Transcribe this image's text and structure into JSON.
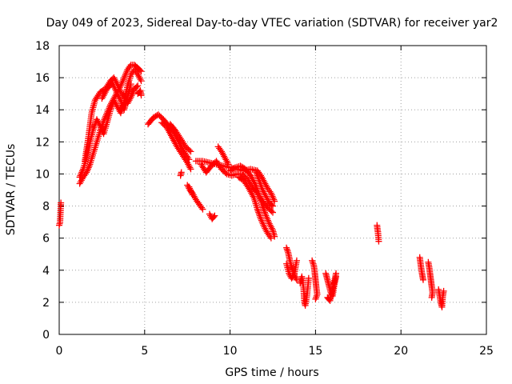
{
  "chart_data": {
    "type": "scatter",
    "title": "Day 049 of 2023, Sidereal Day-to-day VTEC variation (SDTVAR) for receiver yar2",
    "xlabel": "GPS time / hours",
    "ylabel": "SDTVAR / TECUs",
    "xlim": [
      0,
      25
    ],
    "ylim": [
      0,
      18
    ],
    "xticks": [
      0,
      5,
      10,
      15,
      20,
      25
    ],
    "yticks": [
      0,
      2,
      4,
      6,
      8,
      10,
      12,
      14,
      16,
      18
    ],
    "grid": true,
    "marker": "plus",
    "colors": {
      "series": "#ff0000",
      "grid": "#a0a0a0",
      "axis": "#000000"
    },
    "series": [
      {
        "name": "SDTVAR",
        "segments": [
          [
            [
              0.0,
              6.8
            ],
            [
              0.05,
              7.0
            ],
            [
              0.1,
              8.2
            ]
          ],
          [
            [
              1.2,
              9.4
            ],
            [
              1.4,
              9.8
            ],
            [
              1.6,
              10.1
            ],
            [
              1.8,
              10.6
            ],
            [
              2.0,
              11.3
            ],
            [
              2.2,
              12.0
            ],
            [
              2.4,
              12.7
            ],
            [
              2.6,
              13.3
            ],
            [
              2.8,
              13.8
            ],
            [
              3.0,
              14.3
            ],
            [
              3.2,
              14.7
            ],
            [
              3.4,
              15.1
            ],
            [
              3.6,
              15.5
            ],
            [
              3.8,
              16.0
            ],
            [
              4.0,
              16.5
            ],
            [
              4.2,
              16.8
            ],
            [
              4.4,
              16.8
            ],
            [
              4.6,
              16.6
            ],
            [
              4.8,
              16.4
            ]
          ],
          [
            [
              1.2,
              9.8
            ],
            [
              1.4,
              10.3
            ],
            [
              1.6,
              11.0
            ],
            [
              1.8,
              12.0
            ],
            [
              2.0,
              12.8
            ],
            [
              2.2,
              13.4
            ],
            [
              2.4,
              13.0
            ],
            [
              2.6,
              12.5
            ],
            [
              2.8,
              13.2
            ],
            [
              3.0,
              14.0
            ],
            [
              3.2,
              14.6
            ],
            [
              3.4,
              14.2
            ],
            [
              3.6,
              13.8
            ],
            [
              3.8,
              14.5
            ],
            [
              4.0,
              15.5
            ],
            [
              4.2,
              16.2
            ],
            [
              4.4,
              16.5
            ],
            [
              4.6,
              16.2
            ],
            [
              4.8,
              15.8
            ]
          ],
          [
            [
              1.5,
              10.8
            ],
            [
              1.7,
              12.2
            ],
            [
              1.9,
              13.8
            ],
            [
              2.1,
              14.6
            ],
            [
              2.4,
              15.1
            ],
            [
              2.7,
              15.3
            ],
            [
              3.0,
              15.8
            ],
            [
              3.2,
              16.0
            ],
            [
              3.4,
              15.6
            ],
            [
              3.6,
              15.1
            ],
            [
              3.8,
              14.8
            ],
            [
              4.0,
              14.4
            ],
            [
              4.2,
              14.8
            ],
            [
              4.4,
              15.3
            ],
            [
              4.6,
              15.5
            ]
          ],
          [
            [
              2.5,
              14.7
            ],
            [
              2.8,
              15.3
            ],
            [
              3.1,
              15.7
            ],
            [
              3.4,
              15.0
            ],
            [
              3.6,
              14.6
            ],
            [
              3.8,
              14.0
            ],
            [
              4.0,
              14.8
            ],
            [
              4.2,
              15.6
            ]
          ],
          [
            [
              4.6,
              15.0
            ],
            [
              4.75,
              15.2
            ],
            [
              4.8,
              14.9
            ]
          ],
          [
            [
              5.2,
              13.1
            ],
            [
              5.5,
              13.5
            ],
            [
              5.8,
              13.7
            ],
            [
              6.1,
              13.4
            ],
            [
              6.4,
              13.0
            ],
            [
              6.7,
              12.6
            ],
            [
              7.0,
              12.0
            ],
            [
              7.3,
              11.4
            ],
            [
              7.6,
              10.9
            ]
          ],
          [
            [
              6.0,
              13.2
            ],
            [
              6.3,
              12.9
            ],
            [
              6.6,
              12.3
            ],
            [
              6.9,
              11.7
            ],
            [
              7.2,
              11.2
            ],
            [
              7.5,
              10.7
            ],
            [
              7.7,
              10.3
            ]
          ],
          [
            [
              6.5,
              13.1
            ],
            [
              6.8,
              12.7
            ],
            [
              7.1,
              12.2
            ],
            [
              7.4,
              11.7
            ],
            [
              7.7,
              11.4
            ]
          ],
          [
            [
              7.1,
              9.9
            ],
            [
              7.15,
              10.1
            ]
          ],
          [
            [
              7.5,
              9.3
            ],
            [
              7.65,
              9.0
            ],
            [
              7.8,
              8.8
            ],
            [
              8.0,
              8.4
            ],
            [
              8.2,
              8.1
            ],
            [
              8.4,
              7.8
            ]
          ],
          [
            [
              7.6,
              9.2
            ],
            [
              7.8,
              8.7
            ]
          ],
          [
            [
              8.8,
              7.5
            ],
            [
              8.95,
              7.2
            ],
            [
              9.1,
              7.4
            ]
          ],
          [
            [
              8.0,
              10.8
            ],
            [
              8.4,
              10.8
            ],
            [
              8.8,
              10.7
            ],
            [
              9.2,
              10.6
            ],
            [
              9.6,
              10.5
            ],
            [
              10.0,
              10.4
            ],
            [
              10.4,
              10.3
            ],
            [
              10.8,
              10.2
            ],
            [
              11.2,
              10.3
            ],
            [
              11.6,
              10.2
            ],
            [
              11.8,
              9.9
            ],
            [
              12.0,
              9.5
            ],
            [
              12.2,
              9.1
            ],
            [
              12.4,
              8.8
            ],
            [
              12.6,
              8.3
            ]
          ],
          [
            [
              8.3,
              10.6
            ],
            [
              8.6,
              10.1
            ],
            [
              8.9,
              10.5
            ],
            [
              9.2,
              10.8
            ],
            [
              9.5,
              10.3
            ],
            [
              9.8,
              10.0
            ],
            [
              10.1,
              9.9
            ],
            [
              10.4,
              10.0
            ],
            [
              10.7,
              10.0
            ],
            [
              11.0,
              9.7
            ],
            [
              11.3,
              9.2
            ],
            [
              11.6,
              8.8
            ],
            [
              11.9,
              8.3
            ],
            [
              12.2,
              7.9
            ],
            [
              12.5,
              7.6
            ]
          ],
          [
            [
              9.3,
              11.7
            ],
            [
              9.5,
              11.4
            ],
            [
              9.7,
              11.0
            ],
            [
              9.9,
              10.6
            ]
          ],
          [
            [
              10.0,
              10.2
            ],
            [
              10.3,
              10.4
            ],
            [
              10.6,
              10.5
            ],
            [
              10.9,
              10.3
            ],
            [
              11.2,
              9.9
            ],
            [
              11.5,
              9.3
            ],
            [
              11.7,
              8.7
            ],
            [
              11.9,
              8.0
            ],
            [
              12.1,
              7.4
            ],
            [
              12.3,
              6.9
            ],
            [
              12.5,
              6.5
            ],
            [
              12.6,
              6.1
            ]
          ],
          [
            [
              10.5,
              9.8
            ],
            [
              10.8,
              9.6
            ],
            [
              11.1,
              9.1
            ],
            [
              11.4,
              8.5
            ],
            [
              11.6,
              7.8
            ],
            [
              11.8,
              7.2
            ],
            [
              12.0,
              6.7
            ],
            [
              12.2,
              6.3
            ],
            [
              12.4,
              6.0
            ]
          ],
          [
            [
              11.5,
              10.2
            ],
            [
              11.7,
              9.6
            ],
            [
              11.9,
              9.0
            ],
            [
              12.1,
              8.6
            ],
            [
              12.3,
              8.2
            ],
            [
              12.5,
              8.0
            ]
          ],
          [
            [
              13.3,
              5.4
            ],
            [
              13.4,
              5.1
            ],
            [
              13.5,
              4.6
            ],
            [
              13.6,
              4.2
            ],
            [
              13.7,
              3.9
            ],
            [
              13.8,
              3.6
            ],
            [
              13.9,
              3.4
            ]
          ],
          [
            [
              13.3,
              4.4
            ],
            [
              13.45,
              3.8
            ],
            [
              13.6,
              3.5
            ],
            [
              13.75,
              3.7
            ],
            [
              13.9,
              4.6
            ]
          ],
          [
            [
              14.1,
              3.2
            ],
            [
              14.2,
              3.6
            ],
            [
              14.3,
              2.9
            ],
            [
              14.35,
              2.0
            ],
            [
              14.4,
              1.8
            ],
            [
              14.5,
              2.4
            ],
            [
              14.6,
              3.5
            ]
          ],
          [
            [
              14.8,
              4.6
            ],
            [
              14.9,
              4.3
            ],
            [
              14.95,
              3.9
            ],
            [
              15.0,
              3.4
            ],
            [
              15.05,
              2.9
            ],
            [
              15.1,
              2.5
            ],
            [
              15.0,
              2.2
            ]
          ],
          [
            [
              15.6,
              3.8
            ],
            [
              15.7,
              3.4
            ],
            [
              15.8,
              3.0
            ],
            [
              15.9,
              2.6
            ],
            [
              16.0,
              2.4
            ],
            [
              16.1,
              3.1
            ],
            [
              16.2,
              3.6
            ]
          ],
          [
            [
              15.7,
              2.3
            ],
            [
              15.85,
              2.1
            ],
            [
              16.0,
              2.8
            ],
            [
              16.2,
              3.8
            ]
          ],
          [
            [
              18.6,
              6.8
            ],
            [
              18.62,
              6.6
            ],
            [
              18.65,
              6.4
            ],
            [
              18.7,
              5.8
            ]
          ],
          [
            [
              21.1,
              4.8
            ],
            [
              21.15,
              4.4
            ],
            [
              21.2,
              4.0
            ],
            [
              21.25,
              3.7
            ],
            [
              21.3,
              3.4
            ]
          ],
          [
            [
              21.6,
              4.5
            ],
            [
              21.65,
              4.2
            ],
            [
              21.7,
              3.8
            ],
            [
              21.75,
              3.4
            ],
            [
              21.8,
              3.0
            ],
            [
              21.85,
              2.6
            ],
            [
              21.8,
              2.3
            ]
          ],
          [
            [
              22.2,
              2.8
            ],
            [
              22.25,
              2.5
            ],
            [
              22.3,
              2.2
            ],
            [
              22.35,
              1.9
            ],
            [
              22.4,
              1.7
            ],
            [
              22.45,
              2.4
            ],
            [
              22.5,
              2.7
            ]
          ]
        ]
      }
    ]
  }
}
